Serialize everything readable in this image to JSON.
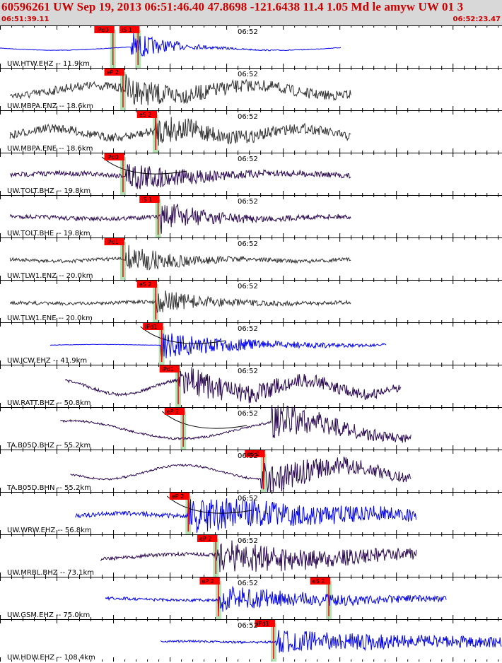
{
  "header": {
    "title": "60596261 UW Sep 19, 2013 06:51:46.40   47.8698 -121.6438 11.4 1.05 Md le amyw UW 01   3",
    "start_time": "06:51:39.11",
    "end_time": "06:52:23.47"
  },
  "colors": {
    "header_bg": "#d8d8d8",
    "header_text": "#cc0000",
    "pick_box": "#ff0000",
    "pick_window": "#a8dca8",
    "trace_blue": "#0000ee",
    "trace_grey": "#333333",
    "trace_purple": "#2a0850",
    "predicted_curve": "#000000"
  },
  "chart_data": {
    "type": "seismogram",
    "x_unit": "time",
    "x_range": [
      "06:51:39.11",
      "06:52:23.47"
    ],
    "center_tick_label": "06:52",
    "traces": [
      {
        "label": "UW.HTW.EHZ -- 11.9km",
        "color": "blue",
        "start_frac": 0.0,
        "end_frac": 0.68,
        "amp": 0.22,
        "noise": 0.05,
        "burst_start": 0.26,
        "burst_amp": 1.0,
        "burst_decay": 0.1,
        "picks": [
          {
            "label": "iPd0",
            "t": 0.225
          },
          {
            "label": "iS 1",
            "t": 0.275
          }
        ],
        "predicted_curve": false
      },
      {
        "label": "UW.MBPA.ENZ -- 18.6km",
        "color": "grey",
        "start_frac": 0.02,
        "end_frac": 0.7,
        "amp": 0.5,
        "noise": 1.0,
        "burst_start": 0.25,
        "burst_amp": 0.7,
        "burst_decay": 0.2,
        "picks": [
          {
            "label": "eP 2",
            "t": 0.245
          }
        ],
        "predicted_curve": false
      },
      {
        "label": "UW.MBPA.ENE -- 18.6km",
        "color": "grey",
        "start_frac": 0.02,
        "end_frac": 0.7,
        "amp": 0.45,
        "noise": 1.0,
        "burst_start": 0.31,
        "burst_amp": 0.8,
        "burst_decay": 0.15,
        "picks": [
          {
            "label": "eS 2",
            "t": 0.31
          }
        ],
        "predicted_curve": false
      },
      {
        "label": "UW.TOLT.BHZ -- 19.8km",
        "color": "purple",
        "start_frac": 0.02,
        "end_frac": 0.7,
        "amp": 0.2,
        "noise": 0.6,
        "burst_start": 0.25,
        "burst_amp": 1.0,
        "burst_decay": 0.15,
        "picks": [
          {
            "label": "iPd0",
            "t": 0.245
          }
        ],
        "predicted_curve": true
      },
      {
        "label": "UW.TOLT.BHE -- 19.8km",
        "color": "purple",
        "start_frac": 0.02,
        "end_frac": 0.7,
        "amp": 0.12,
        "noise": 0.5,
        "burst_start": 0.32,
        "burst_amp": 1.0,
        "burst_decay": 0.12,
        "picks": [
          {
            "label": "iS 1",
            "t": 0.315
          }
        ],
        "predicted_curve": false
      },
      {
        "label": "UW.TLW1.ENZ -- 20.0km",
        "color": "grey",
        "start_frac": 0.02,
        "end_frac": 0.7,
        "amp": 0.12,
        "noise": 0.4,
        "burst_start": 0.25,
        "burst_amp": 1.0,
        "burst_decay": 0.12,
        "picks": [
          {
            "label": "iPd1",
            "t": 0.245
          }
        ],
        "predicted_curve": false
      },
      {
        "label": "UW.TLW1.ENE -- 20.0km",
        "color": "grey",
        "start_frac": 0.02,
        "end_frac": 0.7,
        "amp": 0.1,
        "noise": 0.4,
        "burst_start": 0.31,
        "burst_amp": 0.8,
        "burst_decay": 0.12,
        "picks": [
          {
            "label": "eS 2",
            "t": 0.31
          }
        ],
        "predicted_curve": false
      },
      {
        "label": "UW.JCW.EHZ -- 41.9km",
        "color": "blue",
        "start_frac": 0.1,
        "end_frac": 0.77,
        "amp": 0.05,
        "noise": 0.05,
        "burst_start": 0.32,
        "burst_amp": 0.9,
        "burst_decay": 0.25,
        "picks": [
          {
            "label": "iPd1",
            "t": 0.322
          }
        ],
        "predicted_curve": true
      },
      {
        "label": "UW.RATT.BHZ -- 50.8km",
        "color": "purple",
        "start_frac": 0.13,
        "end_frac": 0.8,
        "amp": 0.7,
        "noise": 0.35,
        "burst_start": 0.355,
        "burst_amp": 0.9,
        "burst_decay": 0.4,
        "picks": [
          {
            "label": "iPd1",
            "t": 0.355
          }
        ],
        "predicted_curve": false
      },
      {
        "label": "TA.B05D.BHZ -- 55.2km",
        "color": "purple",
        "start_frac": 0.12,
        "end_frac": 0.82,
        "amp": 0.9,
        "noise": 0.25,
        "burst_start": 0.54,
        "burst_amp": 1.1,
        "burst_decay": 0.25,
        "picks": [
          {
            "label": "eP 2",
            "t": 0.365
          }
        ],
        "predicted_curve": true
      },
      {
        "label": "TA.B05D.BHN -- 55.2km",
        "color": "purple",
        "start_frac": 0.14,
        "end_frac": 0.82,
        "amp": 0.7,
        "noise": 0.25,
        "burst_start": 0.52,
        "burst_amp": 1.1,
        "burst_decay": 0.3,
        "picks": [
          {
            "label": "eS 2",
            "t": 0.525
          }
        ],
        "predicted_curve": false
      },
      {
        "label": "UW.WRW.EHZ -- 56.8km",
        "color": "blue",
        "start_frac": 0.15,
        "end_frac": 0.83,
        "amp": 0.15,
        "noise": 0.55,
        "burst_start": 0.375,
        "burst_amp": 1.1,
        "burst_decay": 0.45,
        "picks": [
          {
            "label": "eP 2",
            "t": 0.375
          }
        ],
        "predicted_curve": true
      },
      {
        "label": "UW.MRBL.BHZ -- 73.1km",
        "color": "purple",
        "start_frac": 0.2,
        "end_frac": 0.83,
        "amp": 0.3,
        "noise": 0.45,
        "burst_start": 0.43,
        "burst_amp": 1.0,
        "burst_decay": 0.4,
        "picks": [
          {
            "label": "eP 2",
            "t": 0.43
          }
        ],
        "predicted_curve": false
      },
      {
        "label": "UW.GSM.EHZ -- 75.0km",
        "color": "blue",
        "start_frac": 0.21,
        "end_frac": 0.89,
        "amp": 0.1,
        "noise": 0.35,
        "burst_start": 0.435,
        "burst_amp": 0.8,
        "burst_decay": 0.3,
        "picks": [
          {
            "label": "eP 2",
            "t": 0.435
          },
          {
            "label": "eS 2",
            "t": 0.655
          }
        ],
        "predicted_curve": false
      },
      {
        "label": "UW.HDW.EHZ -- 108.4km",
        "color": "blue",
        "start_frac": 0.32,
        "end_frac": 1.0,
        "amp": 0.05,
        "noise": 0.25,
        "burst_start": 0.55,
        "burst_amp": 0.7,
        "burst_decay": 0.6,
        "picks": [
          {
            "label": "iPd1",
            "t": 0.545
          }
        ],
        "predicted_curve": false
      }
    ]
  }
}
